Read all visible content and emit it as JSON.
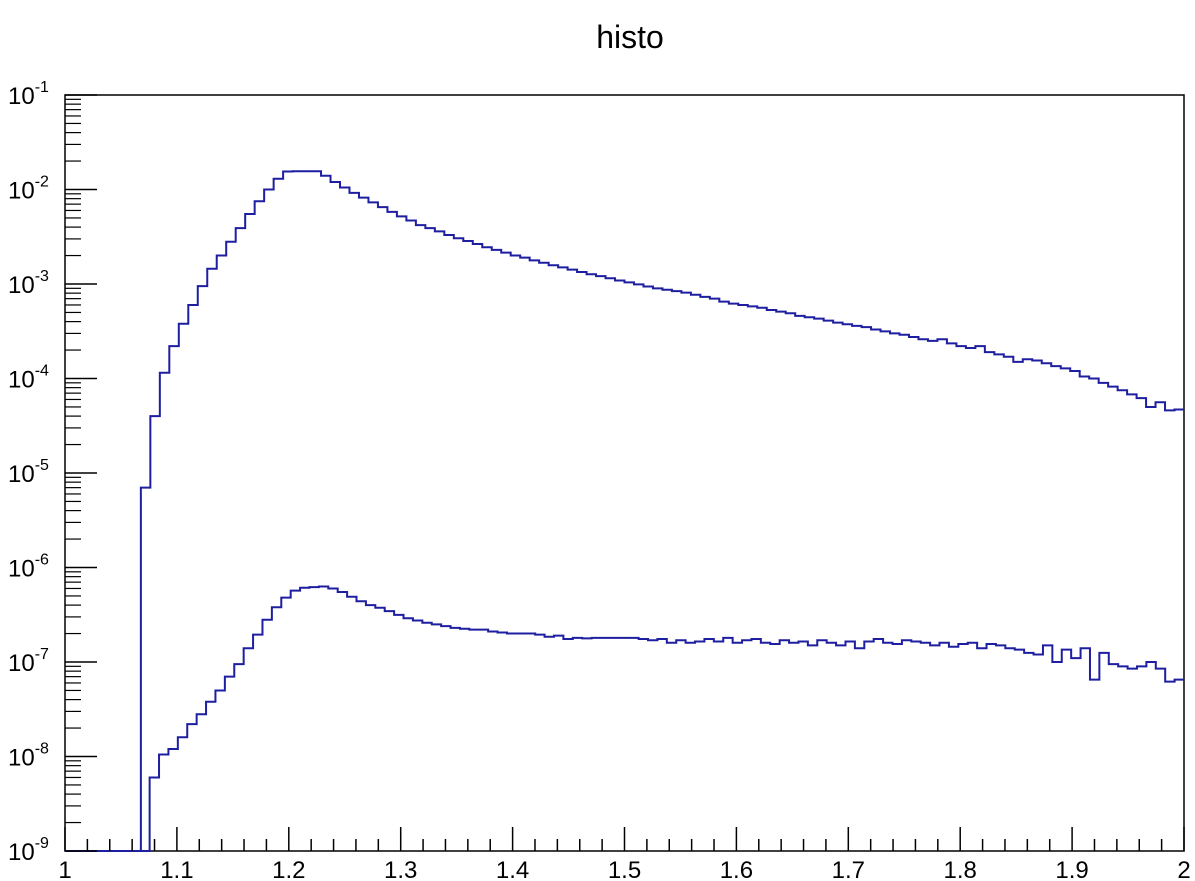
{
  "chart_data": {
    "type": "line",
    "title": "histo",
    "xlabel": "",
    "ylabel": "",
    "xlim": [
      1,
      2
    ],
    "ylim": [
      1e-09,
      0.1
    ],
    "yscale": "log",
    "grid": false,
    "line_color": "#1e1ea0",
    "x_ticks": [
      {
        "value": 1,
        "label": "1"
      },
      {
        "value": 1.1,
        "label": "1.1"
      },
      {
        "value": 1.2,
        "label": "1.2"
      },
      {
        "value": 1.3,
        "label": "1.3"
      },
      {
        "value": 1.4,
        "label": "1.4"
      },
      {
        "value": 1.5,
        "label": "1.5"
      },
      {
        "value": 1.6,
        "label": "1.6"
      },
      {
        "value": 1.7,
        "label": "1.7"
      },
      {
        "value": 1.8,
        "label": "1.8"
      },
      {
        "value": 1.9,
        "label": "1.9"
      },
      {
        "value": 2,
        "label": "2"
      }
    ],
    "y_ticks": [
      {
        "value": 1e-09,
        "base": "10",
        "exp": "-9"
      },
      {
        "value": 1e-08,
        "base": "10",
        "exp": "-8"
      },
      {
        "value": 1e-07,
        "base": "10",
        "exp": "-7"
      },
      {
        "value": 1e-06,
        "base": "10",
        "exp": "-6"
      },
      {
        "value": 1e-05,
        "base": "10",
        "exp": "-5"
      },
      {
        "value": 0.0001,
        "base": "10",
        "exp": "-4"
      },
      {
        "value": 0.001,
        "base": "10",
        "exp": "-3"
      },
      {
        "value": 0.01,
        "base": "10",
        "exp": "-2"
      },
      {
        "value": 0.1,
        "base": "10",
        "exp": "-1"
      }
    ],
    "bin_edges_range": [
      1,
      2
    ],
    "series": [
      {
        "values": [
          1e-09,
          1e-09,
          1e-09,
          1e-09,
          1e-09,
          1e-09,
          1e-09,
          1e-09,
          7e-06,
          4e-05,
          0.000115,
          0.00022,
          0.00038,
          0.0006,
          0.00095,
          0.00145,
          0.002,
          0.0028,
          0.0039,
          0.0055,
          0.0075,
          0.01,
          0.013,
          0.0155,
          0.0156,
          0.0156,
          0.0156,
          0.014,
          0.012,
          0.0105,
          0.0092,
          0.0082,
          0.0073,
          0.0065,
          0.0058,
          0.0052,
          0.0047,
          0.0042,
          0.0039,
          0.0036,
          0.0033,
          0.00305,
          0.00285,
          0.00265,
          0.00245,
          0.0023,
          0.00215,
          0.002,
          0.0019,
          0.00178,
          0.00168,
          0.00158,
          0.0015,
          0.00142,
          0.00134,
          0.00127,
          0.00121,
          0.00115,
          0.00109,
          0.00104,
          0.00099,
          0.00094,
          0.0009,
          0.00087,
          0.00084,
          0.00081,
          0.00077,
          0.00073,
          0.0007,
          0.00065,
          0.00062,
          0.0006,
          0.00058,
          0.00056,
          0.00053,
          0.00051,
          0.00049,
          0.00046,
          0.000445,
          0.00043,
          0.00041,
          0.00039,
          0.000375,
          0.00036,
          0.00035,
          0.00033,
          0.000315,
          0.0003,
          0.00029,
          0.000275,
          0.00026,
          0.00025,
          0.00026,
          0.000235,
          0.00022,
          0.00021,
          0.00022,
          0.00019,
          0.00018,
          0.00017,
          0.00015,
          0.00016,
          0.000155,
          0.000145,
          0.000135,
          0.000128,
          0.00012,
          0.000105,
          0.0001,
          9e-05,
          8.2e-05,
          7.5e-05,
          6.8e-05,
          6.2e-05,
          5e-05,
          5.6e-05,
          4.6e-05,
          4.7e-05
        ]
      },
      {
        "values": [
          1e-09,
          1e-09,
          1e-09,
          1e-09,
          1e-09,
          1e-09,
          1e-09,
          1e-09,
          1e-09,
          6e-09,
          1.05e-08,
          1.2e-08,
          1.6e-08,
          2.2e-08,
          2.8e-08,
          3.8e-08,
          5e-08,
          7e-08,
          9.5e-08,
          1.4e-07,
          1.95e-07,
          2.8e-07,
          3.8e-07,
          4.8e-07,
          5.7e-07,
          6.1e-07,
          6.2e-07,
          6.3e-07,
          6e-07,
          5.5e-07,
          4.9e-07,
          4.4e-07,
          4e-07,
          3.75e-07,
          3.45e-07,
          3.15e-07,
          2.9e-07,
          2.75e-07,
          2.6e-07,
          2.5e-07,
          2.4e-07,
          2.3e-07,
          2.25e-07,
          2.2e-07,
          2.2e-07,
          2.1e-07,
          2.05e-07,
          2e-07,
          2e-07,
          2e-07,
          1.95e-07,
          1.85e-07,
          1.9e-07,
          1.75e-07,
          1.8e-07,
          1.78e-07,
          1.8e-07,
          1.8e-07,
          1.8e-07,
          1.8e-07,
          1.8e-07,
          1.75e-07,
          1.7e-07,
          1.75e-07,
          1.6e-07,
          1.7e-07,
          1.6e-07,
          1.65e-07,
          1.75e-07,
          1.65e-07,
          1.8e-07,
          1.6e-07,
          1.7e-07,
          1.75e-07,
          1.6e-07,
          1.55e-07,
          1.7e-07,
          1.6e-07,
          1.65e-07,
          1.5e-07,
          1.7e-07,
          1.6e-07,
          1.5e-07,
          1.65e-07,
          1.4e-07,
          1.65e-07,
          1.75e-07,
          1.6e-07,
          1.55e-07,
          1.7e-07,
          1.65e-07,
          1.6e-07,
          1.5e-07,
          1.6e-07,
          1.45e-07,
          1.55e-07,
          1.6e-07,
          1.4e-07,
          1.55e-07,
          1.5e-07,
          1.4e-07,
          1.35e-07,
          1.25e-07,
          1.2e-07,
          1.5e-07,
          1e-07,
          1.35e-07,
          1.1e-07,
          1.4e-07,
          6.5e-08,
          1.25e-07,
          9.5e-08,
          9e-08,
          8.5e-08,
          9e-08,
          1e-07,
          8.5e-08,
          6.2e-08,
          6.5e-08
        ]
      }
    ]
  }
}
